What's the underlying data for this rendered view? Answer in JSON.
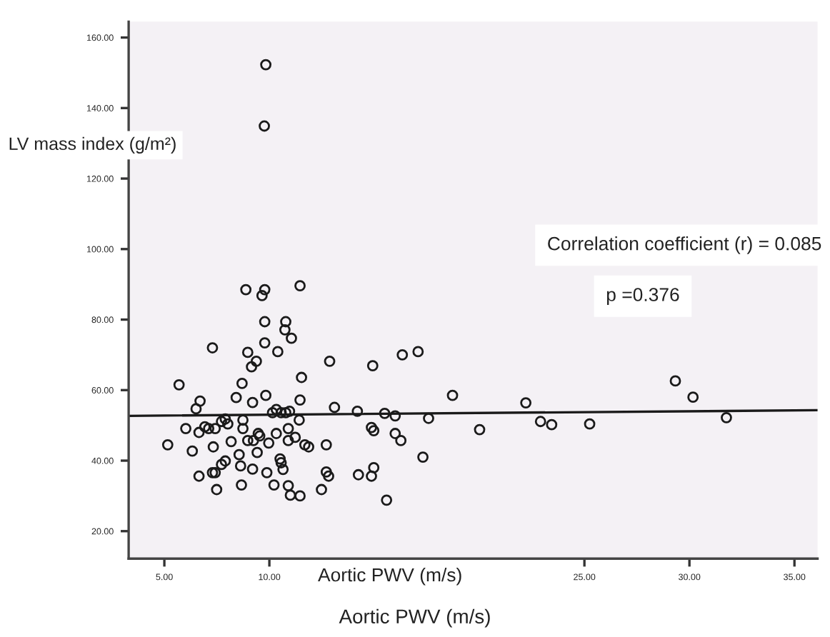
{
  "chart_data": {
    "type": "scatter",
    "xlabel": "Aortic PWV (m/s)",
    "ylabel": "LV mass index (g/m²)",
    "annotations": [
      "Correlation coefficient (r) = 0.085",
      "p =0.376",
      "Aortic PWV (m/s)"
    ],
    "xlim": [
      3.3,
      36.1
    ],
    "ylim": [
      12.2,
      164.5
    ],
    "xticks": [
      {
        "value": 5,
        "label": "5.00"
      },
      {
        "value": 10,
        "label": "10.00"
      },
      {
        "value": 25,
        "label": "25.00"
      },
      {
        "value": 30,
        "label": "30.00"
      },
      {
        "value": 35,
        "label": "35.00"
      }
    ],
    "yticks": [
      {
        "value": 20,
        "label": "20.00"
      },
      {
        "value": 40,
        "label": "40.00"
      },
      {
        "value": 60,
        "label": "60.00"
      },
      {
        "value": 80,
        "label": "80.00"
      },
      {
        "value": 100,
        "label": "100.00"
      },
      {
        "value": 120,
        "label": "120.00"
      },
      {
        "value": 140,
        "label": "140.00"
      },
      {
        "value": 160,
        "label": "160.00"
      }
    ],
    "grid": false,
    "legend": false,
    "marker": "circle",
    "series": [
      {
        "color": "#1a1a1a",
        "x": [
          5.16,
          5.7,
          6.02,
          6.33,
          6.65,
          6.51,
          6.7,
          6.65,
          6.93,
          7.11,
          7.29,
          7.33,
          7.29,
          7.42,
          7.49,
          7.42,
          7.72,
          7.9,
          8.02,
          7.9,
          7.72,
          8.18,
          8.42,
          8.7,
          8.56,
          8.63,
          8.67,
          8.88,
          8.97,
          9.15,
          9.38,
          9.2,
          8.74,
          8.74,
          8.97,
          9.24,
          9.47,
          9.54,
          9.42,
          9.2,
          9.78,
          9.65,
          9.78,
          9.78,
          9.83,
          9.88,
          9.97,
          10.15,
          10.33,
          10.56,
          10.78,
          10.96,
          10.22,
          10.4,
          10.33,
          10.51,
          10.56,
          10.65,
          10.78,
          10.74,
          11.05,
          10.9,
          10.9,
          11.23,
          10.9,
          11.0,
          11.46,
          11.46,
          11.53,
          11.46,
          11.42,
          11.69,
          11.87,
          12.48,
          12.71,
          12.71,
          12.82,
          12.87,
          13.1,
          14.19,
          14.24,
          14.86,
          14.97,
          14.86,
          14.97,
          14.92,
          15.58,
          15.49,
          15.99,
          15.99,
          16.26,
          16.33,
          17.08,
          17.31,
          17.58,
          18.72,
          9.83,
          9.76,
          20.01,
          22.21,
          22.91,
          23.44,
          25.25,
          29.33,
          30.17,
          31.76
        ],
        "values": [
          44.5,
          61.5,
          49.1,
          42.7,
          35.6,
          54.7,
          56.9,
          48,
          49.6,
          49.1,
          72,
          43.9,
          36.6,
          36.6,
          31.8,
          49.1,
          51.1,
          51.8,
          50.4,
          39.9,
          38.9,
          45.4,
          57.9,
          61.9,
          41.7,
          38.5,
          33.1,
          88.5,
          70.7,
          66.6,
          68.2,
          56.5,
          51.5,
          49.1,
          45.7,
          45.7,
          47.7,
          47,
          42.3,
          37.6,
          88.5,
          86.8,
          79.4,
          73.4,
          58.5,
          36.6,
          45,
          53.6,
          54.5,
          53.6,
          53.6,
          54,
          33.1,
          70.9,
          47.7,
          40.5,
          39.4,
          37.5,
          79.4,
          77.1,
          74.7,
          49.1,
          45.7,
          46.6,
          32.9,
          30.2,
          30,
          89.6,
          63.6,
          57.2,
          51.5,
          44.5,
          43.9,
          31.8,
          44.5,
          36.8,
          35.6,
          68.2,
          55.1,
          54,
          36,
          35.6,
          38,
          49.4,
          48.5,
          66.9,
          28.8,
          53.4,
          52.7,
          47.7,
          45.7,
          70,
          70.9,
          41,
          52,
          58.5,
          152.3,
          134.9,
          48.8,
          56.4,
          51.1,
          50.2,
          50.4,
          62.6,
          58,
          52.2
        ]
      },
      {
        "type": "line",
        "color": "#1a1a1a",
        "marker": "none",
        "line_style": "solid",
        "x": [
          3.3,
          36.1
        ],
        "values": [
          52.7,
          54.3
        ]
      }
    ]
  }
}
